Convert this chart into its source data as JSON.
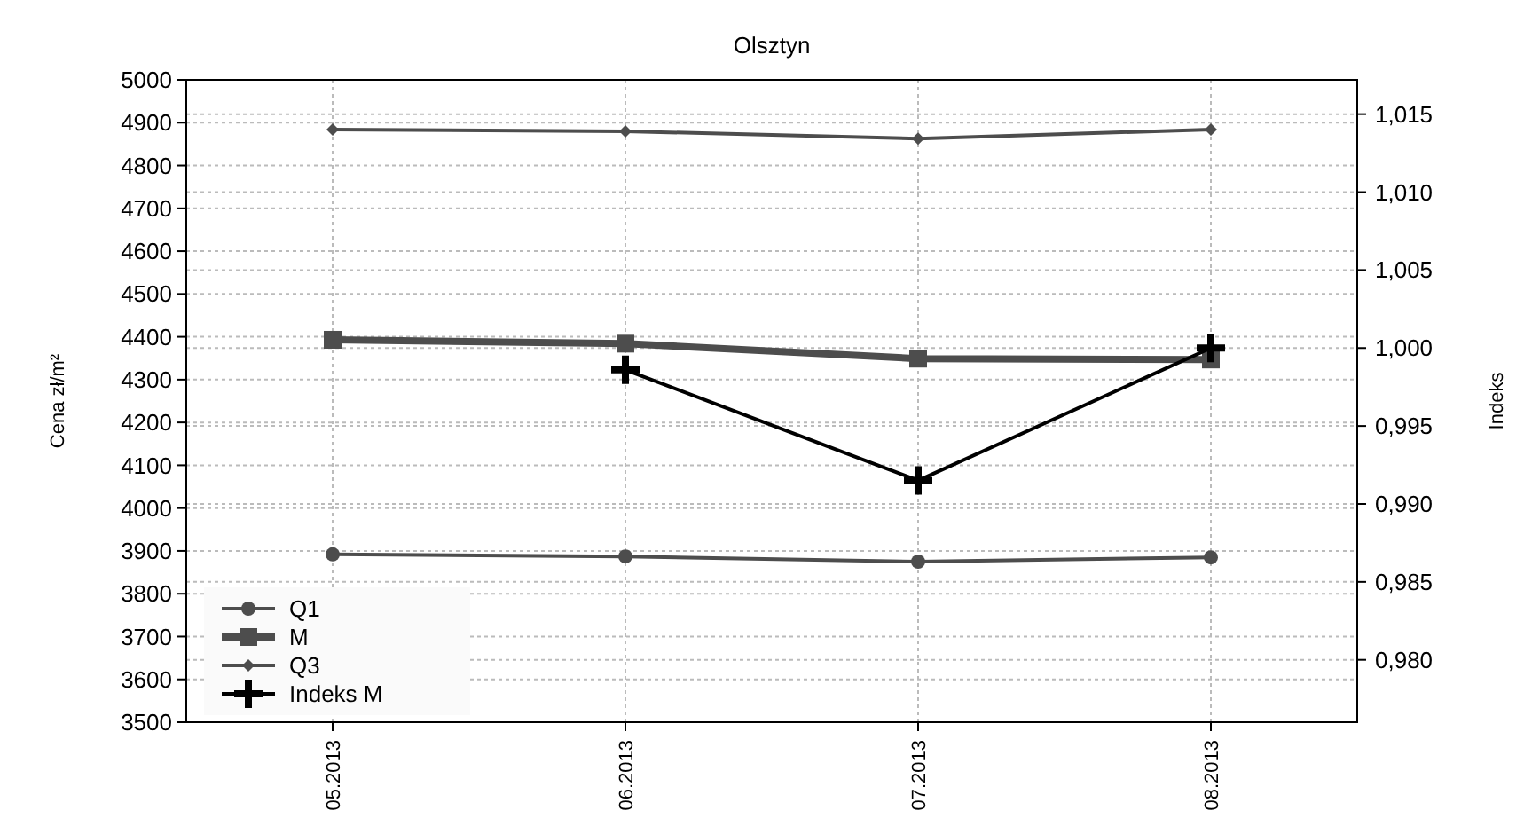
{
  "chart_data": {
    "type": "line",
    "title": "Olsztyn",
    "ylabel": "Cena zł/m²",
    "y2label": "Indeks",
    "categories": [
      "05.2013",
      "06.2013",
      "07.2013",
      "08.2013"
    ],
    "series": [
      {
        "name": "Q1",
        "color": "#4d4d4d",
        "marker": "circle",
        "values": [
          3892,
          3887,
          3875,
          3885
        ]
      },
      {
        "name": "M",
        "color": "#4d4d4d",
        "marker": "square",
        "values": [
          4393,
          4384,
          4349,
          4347
        ]
      },
      {
        "name": "Q3",
        "color": "#4d4d4d",
        "marker": "diamond",
        "values": [
          4884,
          4880,
          4863,
          4884
        ]
      },
      {
        "name": "Indeks M",
        "color": "#000000",
        "marker": "cross",
        "axis": "y2",
        "values": [
          null,
          0.9986,
          0.9915,
          1.0
        ]
      }
    ],
    "ylim": [
      3500,
      5000
    ],
    "yticks": [
      3500,
      3600,
      3700,
      3800,
      3900,
      4000,
      4100,
      4200,
      4300,
      4400,
      4500,
      4600,
      4700,
      4800,
      4900,
      5000
    ],
    "y2lim": [
      0.976,
      1.0172
    ],
    "y2ticks": [
      {
        "value": 0.98,
        "label": "0,980"
      },
      {
        "value": 0.985,
        "label": "0,985"
      },
      {
        "value": 0.99,
        "label": "0,990"
      },
      {
        "value": 0.995,
        "label": "0,995"
      },
      {
        "value": 1.0,
        "label": "1,000"
      },
      {
        "value": 1.005,
        "label": "1,005"
      },
      {
        "value": 1.01,
        "label": "1,010"
      },
      {
        "value": 1.015,
        "label": "1,015"
      }
    ],
    "grid": true,
    "legend": "bottom left",
    "line_style": "solid"
  }
}
